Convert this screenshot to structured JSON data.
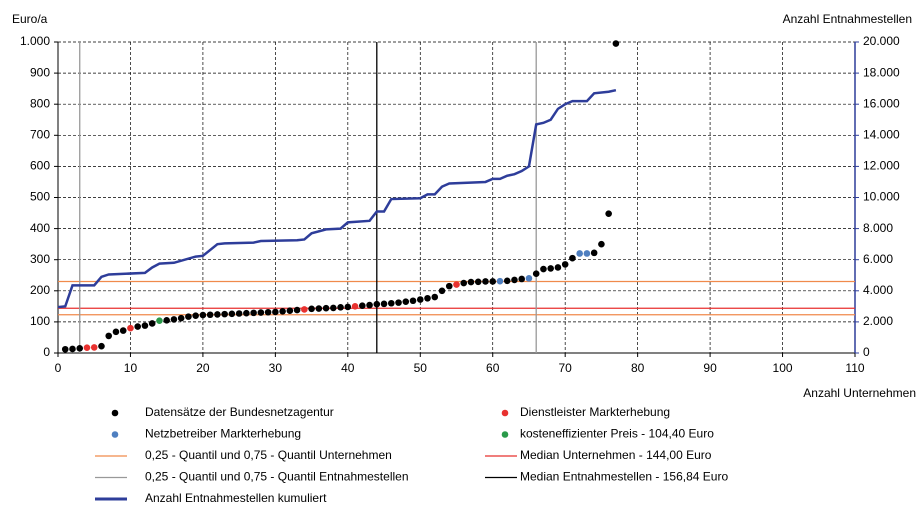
{
  "chart_data": {
    "type": "scatter",
    "ylabel": "Euro/a",
    "y2label": "Anzahl Entnahmestellen",
    "xlabel": "Anzahl Unternehmen",
    "xlim": [
      0,
      110
    ],
    "xticks": [
      0,
      10,
      20,
      30,
      40,
      50,
      60,
      70,
      80,
      90,
      100,
      110
    ],
    "ylim": [
      0,
      1000
    ],
    "yticks": [
      0,
      100,
      200,
      300,
      400,
      500,
      600,
      700,
      800,
      900,
      {
        "value": 1000,
        "label": "1.000"
      }
    ],
    "y2lim": [
      0,
      20000
    ],
    "y2ticks": [
      0,
      {
        "value": 2000,
        "label": "2.000"
      },
      {
        "value": 4000,
        "label": "4.000"
      },
      {
        "value": 6000,
        "label": "6.000"
      },
      {
        "value": 8000,
        "label": "8.000"
      },
      {
        "value": 10000,
        "label": "10.000"
      },
      {
        "value": 12000,
        "label": "12.000"
      },
      {
        "value": 14000,
        "label": "14.000"
      },
      {
        "value": 16000,
        "label": "16.000"
      },
      {
        "value": 18000,
        "label": "18.000"
      },
      {
        "value": 20000,
        "label": "20.000"
      }
    ],
    "grid": true,
    "series": [
      {
        "name": "Datensätze der Bundesnetzagentur",
        "color": "#000000",
        "x": [
          1,
          2,
          3,
          6,
          7,
          8,
          9,
          11,
          12,
          13,
          15,
          16,
          17,
          18,
          19,
          20,
          21,
          22,
          23,
          24,
          25,
          26,
          27,
          28,
          29,
          30,
          31,
          32,
          33,
          35,
          36,
          37,
          38,
          39,
          40,
          42,
          43,
          44,
          45,
          46,
          47,
          48,
          49,
          50,
          51,
          52,
          53,
          54,
          56,
          57,
          58,
          59,
          60,
          62,
          63,
          64,
          66,
          67,
          68,
          69,
          70,
          71,
          74,
          75,
          76,
          77
        ],
        "values": [
          12,
          13,
          15,
          22,
          55,
          68,
          72,
          85,
          88,
          95,
          105,
          108,
          112,
          117,
          120,
          122,
          123,
          124,
          125,
          126,
          127,
          128,
          129,
          130,
          131,
          132,
          134,
          136,
          138,
          142,
          143,
          144,
          145,
          147,
          148,
          152,
          154,
          157,
          158,
          160,
          162,
          165,
          168,
          172,
          176,
          180,
          200,
          215,
          225,
          228,
          229,
          230,
          230,
          232,
          235,
          238,
          255,
          270,
          272,
          275,
          285,
          305,
          322,
          350,
          448,
          995
        ]
      },
      {
        "name": "Dienstleister Markterhebung",
        "color": "#e8312f",
        "x": [
          4,
          5,
          10,
          34,
          41,
          55
        ],
        "values": [
          17,
          18,
          80,
          140,
          150,
          220
        ]
      },
      {
        "name": "Netzbetreiber Markterhebung",
        "color": "#4f7fc0",
        "x": [
          61,
          65,
          72,
          73
        ],
        "values": [
          231,
          240,
          320,
          320
        ]
      },
      {
        "name": "kosteneffizienter Preis - 104,40 Euro",
        "color": "#2a9a4a",
        "x": [
          14
        ],
        "values": [
          104
        ]
      },
      {
        "name": "Anzahl Entnahmestellen kumuliert",
        "color": "#2e3d9a",
        "type": "line",
        "axis": "y2",
        "x": [
          0,
          1,
          2,
          5,
          6,
          7,
          12,
          13,
          14,
          16,
          19,
          20,
          22,
          23,
          27,
          28,
          33,
          34,
          35,
          37,
          39,
          40,
          43,
          44,
          45,
          46,
          50,
          51,
          52,
          53,
          54,
          59,
          60,
          61,
          62,
          63,
          64,
          65,
          66,
          67,
          68,
          69,
          70,
          71,
          73,
          74,
          76,
          77
        ],
        "values": [
          2950,
          3000,
          4350,
          4350,
          4900,
          5050,
          5150,
          5500,
          5750,
          5800,
          6200,
          6250,
          7000,
          7050,
          7100,
          7200,
          7250,
          7300,
          7700,
          7950,
          8000,
          8400,
          8500,
          9100,
          9100,
          9900,
          9950,
          10200,
          10200,
          10700,
          10900,
          11000,
          11200,
          11200,
          11400,
          11500,
          11700,
          12000,
          14700,
          14800,
          15000,
          15700,
          16000,
          16200,
          16200,
          16700,
          16800,
          16900
        ]
      }
    ],
    "hlines": [
      {
        "name": "0,25 - Quantil und 0,75 - Quantil Unternehmen",
        "color": "#f08a4b",
        "values": [
          123,
          230
        ]
      },
      {
        "name": "Median Unternehmen - 144,00 Euro",
        "color": "#e8312f",
        "values": [
          144
        ]
      }
    ],
    "vlines": [
      {
        "name": "0,25 - Quantil und 0,75 - Quantil Entnahmestellen",
        "color": "#999999",
        "values": [
          3,
          66
        ]
      },
      {
        "name": "Median Entnahmestellen - 156,84 Euro",
        "color": "#000000",
        "values": [
          44
        ]
      }
    ]
  }
}
